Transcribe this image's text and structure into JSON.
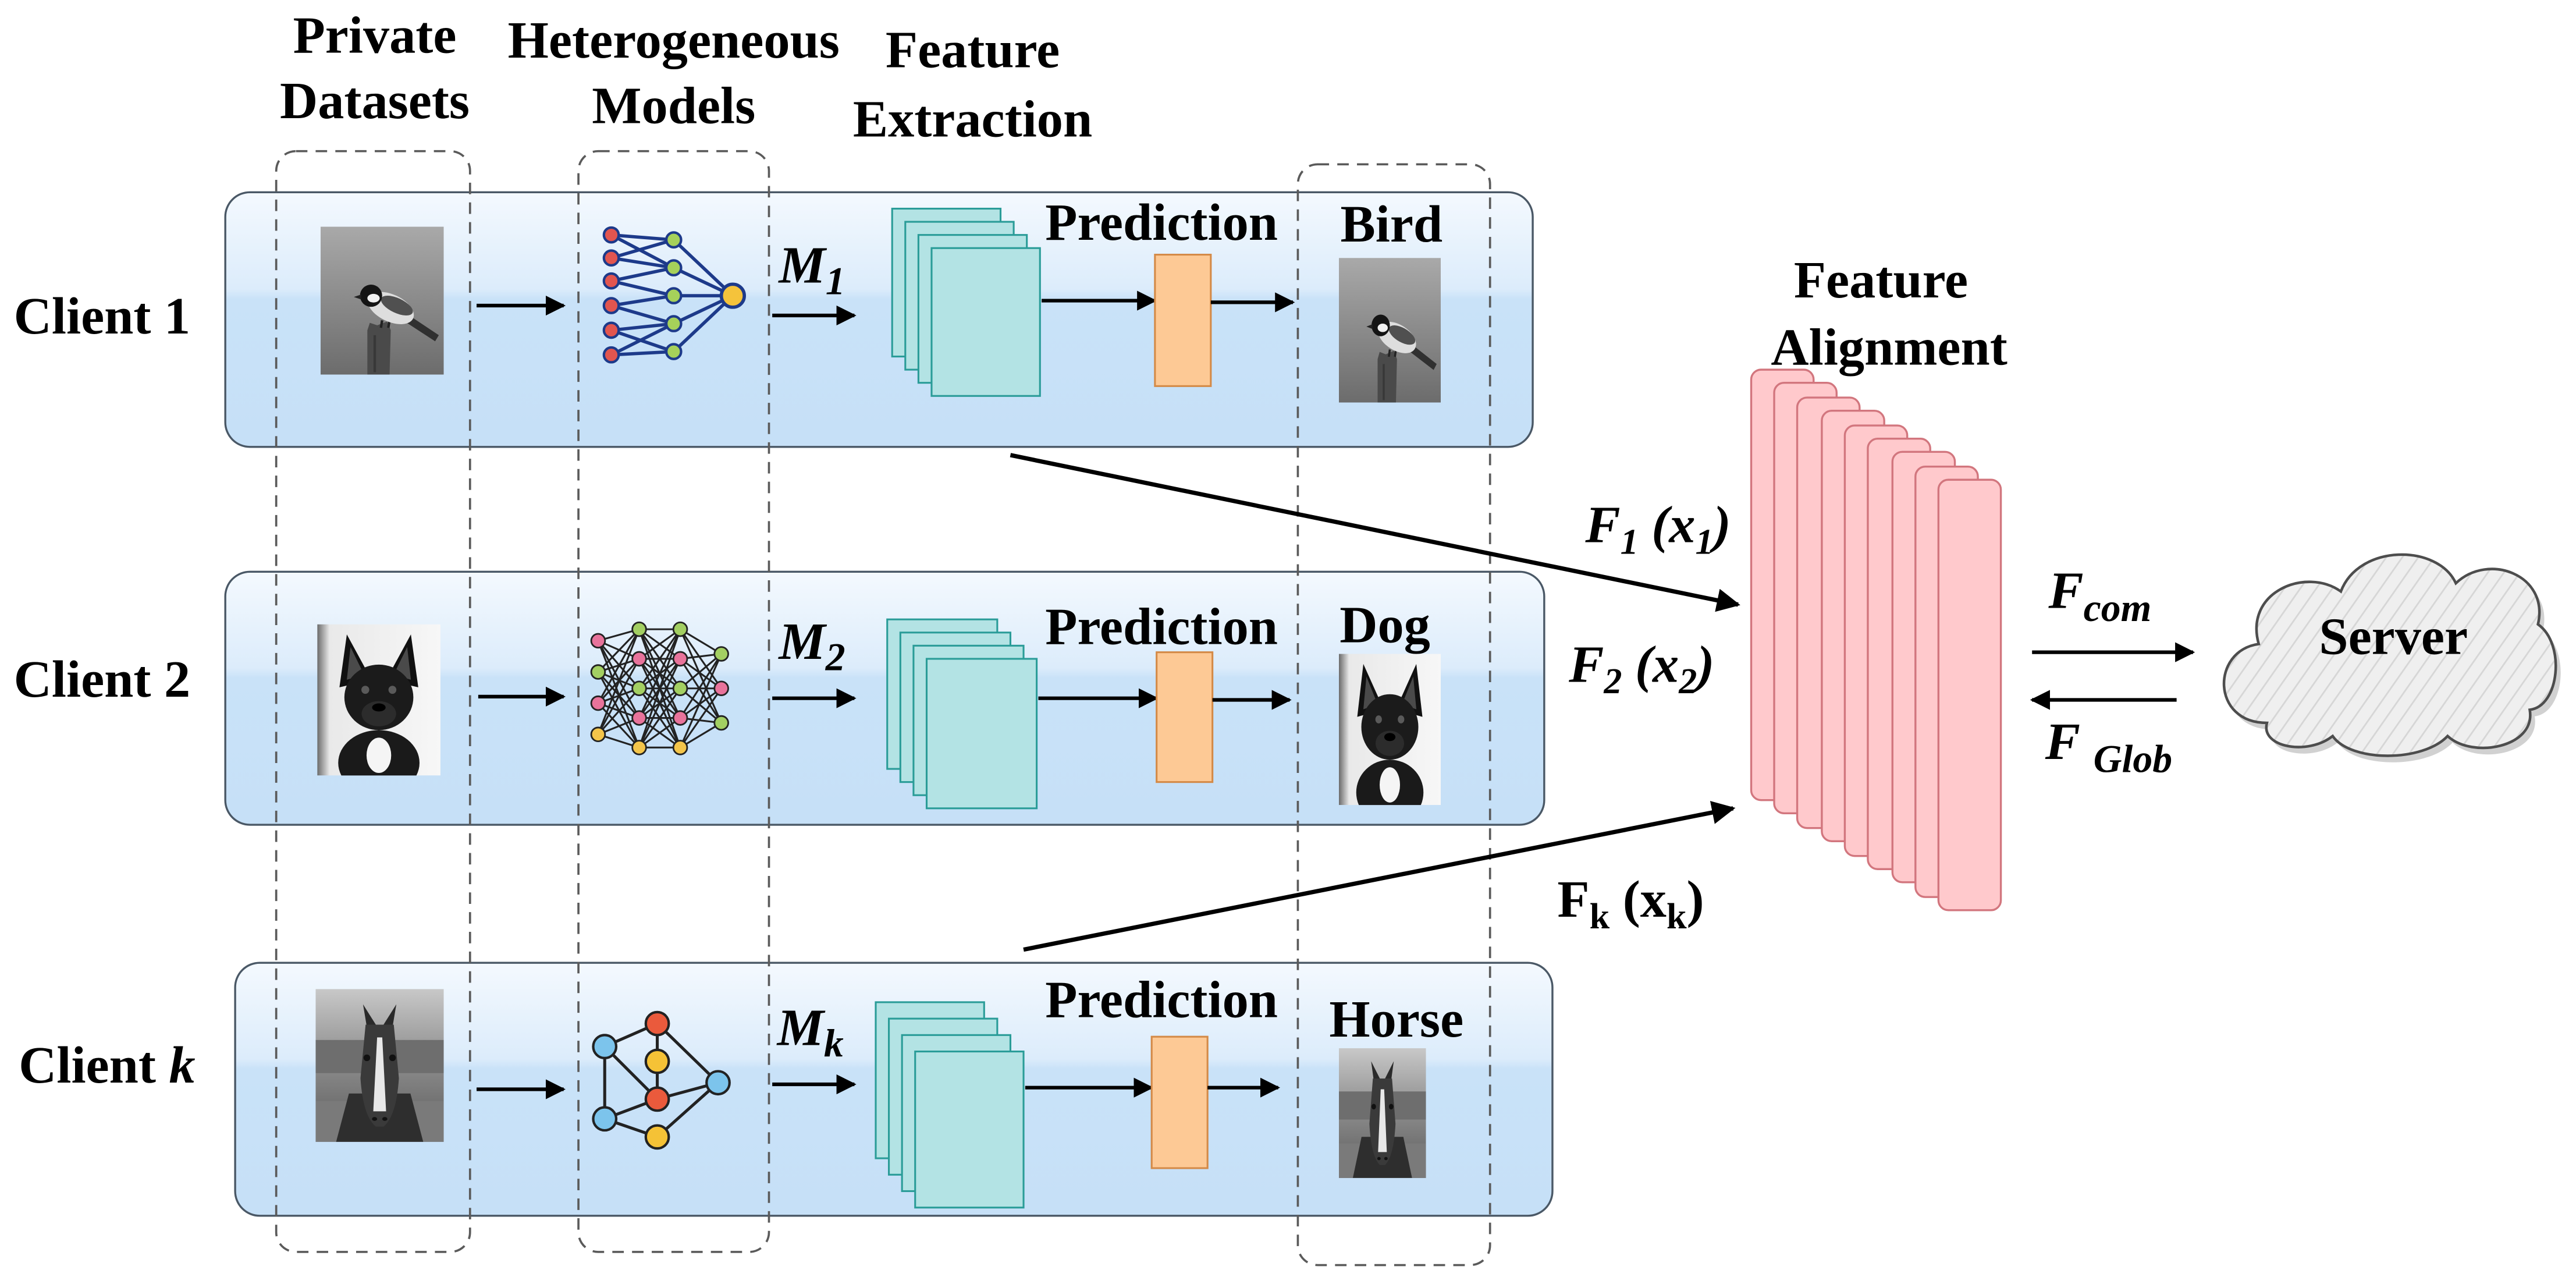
{
  "columns": {
    "private_datasets": [
      "Private",
      "Datasets"
    ],
    "heterogeneous_models": [
      "Heterogeneous",
      "Models"
    ],
    "feature_extraction": [
      "Feature",
      "Extraction"
    ]
  },
  "clients": [
    {
      "label": "Client",
      "index": "1",
      "model": "M",
      "model_index": "1",
      "prediction": "Prediction",
      "result": "Bird",
      "photo": "bird-photo",
      "model_icon": "neural-network-icon"
    },
    {
      "label": "Client",
      "index": "2",
      "model": "M",
      "model_index": "2",
      "prediction": "Prediction",
      "result": "Dog",
      "photo": "dog-photo",
      "model_icon": "deep-network-icon"
    },
    {
      "label": "Client",
      "index": "k",
      "model": "M",
      "model_index": "k",
      "prediction": "Prediction",
      "result": "Horse",
      "photo": "horse-photo",
      "model_icon": "graph-network-icon"
    }
  ],
  "feature_maps": [
    {
      "symbol": "F",
      "symbol_index": "1",
      "input": "(x",
      "input_index": "1",
      "close": ")"
    },
    {
      "symbol": "F",
      "symbol_index": "2",
      "input": "(x",
      "input_index": "2",
      "close": ")"
    },
    {
      "symbol": "F",
      "symbol_index": "k",
      "input": "(x",
      "input_index": "k",
      "close": ")"
    }
  ],
  "alignment": [
    "Feature",
    "Alignment"
  ],
  "server": {
    "label": "Server",
    "upload_symbol": "F",
    "upload_sub": "com",
    "download_symbol": "F",
    "download_sub": "Glob"
  },
  "colors": {
    "feature_map": "#b3e3e4",
    "classifier": "#fdc995",
    "alignment": "#ffc9cc"
  }
}
